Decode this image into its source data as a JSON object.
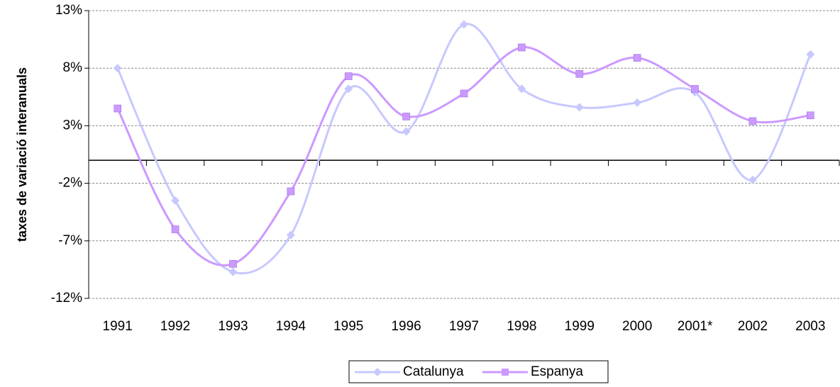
{
  "chart_data": {
    "type": "line",
    "y_label": "taxes de variació interanuals",
    "categories": [
      "1991",
      "1992",
      "1993",
      "1994",
      "1995",
      "1996",
      "1997",
      "1998",
      "1999",
      "2000",
      "2001*",
      "2002",
      "2003"
    ],
    "series": [
      {
        "name": "Catalunya",
        "color": "#c8c8ff",
        "marker": "diamond",
        "values": [
          8.0,
          -3.5,
          -9.7,
          -6.5,
          6.2,
          2.5,
          11.8,
          6.2,
          4.6,
          5.0,
          5.9,
          -1.7,
          9.2
        ]
      },
      {
        "name": "Espanya",
        "color": "#cc99ff",
        "marker": "square",
        "values": [
          4.5,
          -6.0,
          -9.0,
          -2.7,
          7.3,
          3.8,
          5.8,
          9.8,
          7.5,
          8.9,
          6.2,
          3.4,
          3.9
        ]
      }
    ],
    "ylim": [
      -12,
      13
    ],
    "yticks": [
      {
        "value": -12,
        "label": "-12%"
      },
      {
        "value": -7,
        "label": "-7%"
      },
      {
        "value": -2,
        "label": "-2%"
      },
      {
        "value": 3,
        "label": "3%"
      },
      {
        "value": 8,
        "label": "8%"
      },
      {
        "value": 13,
        "label": "13%"
      }
    ],
    "grid": true,
    "smooth": true,
    "legend": "bottom"
  }
}
